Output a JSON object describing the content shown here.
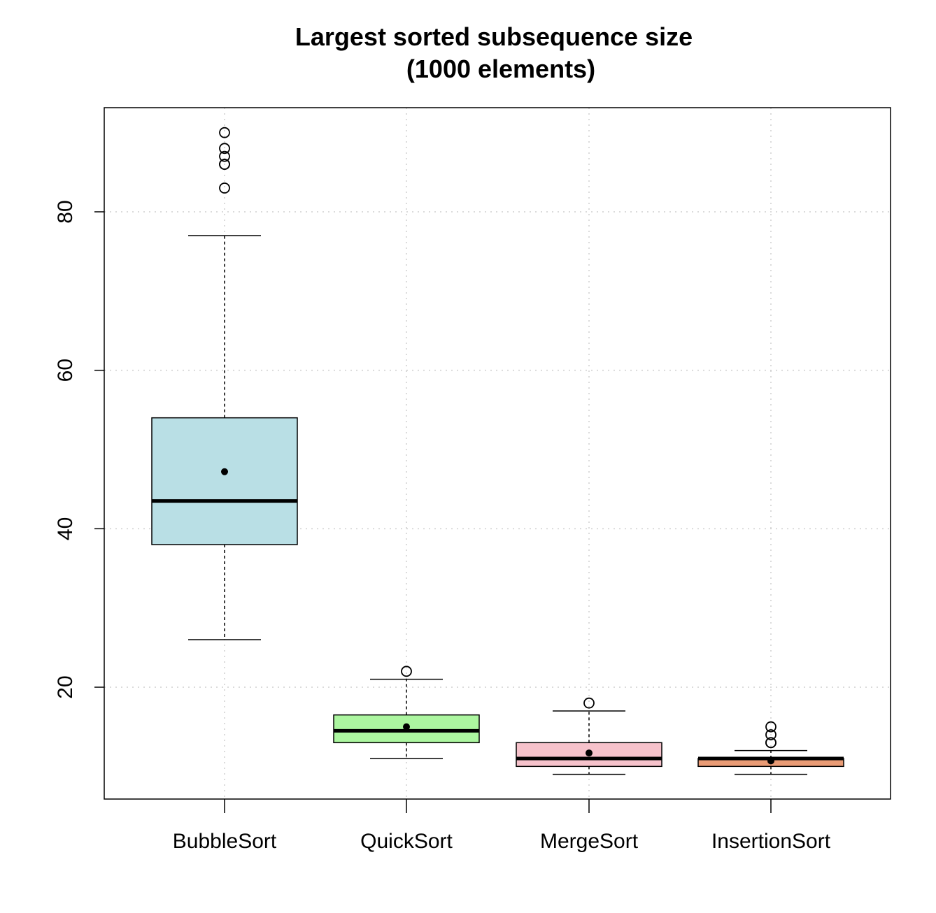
{
  "chart_data": {
    "type": "boxplot",
    "title": [
      "Largest sorted subsequence size",
      "(1000 elements)"
    ],
    "xlabel": "",
    "ylabel": "",
    "ylim": [
      6.5,
      93.5
    ],
    "yticks": [
      20,
      40,
      60,
      80
    ],
    "grid": true,
    "categories": [
      "BubbleSort",
      "QuickSort",
      "MergeSort",
      "InsertionSort"
    ],
    "boxes": [
      {
        "name": "BubbleSort",
        "whisker_low": 26,
        "q1": 38,
        "median": 43.5,
        "q3": 54,
        "whisker_high": 77,
        "mean": 47.2,
        "outliers": [
          83,
          86,
          86,
          87,
          88,
          90
        ],
        "color": "#b9dfe5"
      },
      {
        "name": "QuickSort",
        "whisker_low": 11,
        "q1": 13,
        "median": 14.5,
        "q3": 16.5,
        "whisker_high": 21,
        "mean": 15,
        "outliers": [
          22
        ],
        "color": "#acf6a0"
      },
      {
        "name": "MergeSort",
        "whisker_low": 9,
        "q1": 10,
        "median": 11,
        "q3": 13,
        "whisker_high": 17,
        "mean": 11.7,
        "outliers": [
          18
        ],
        "color": "#f6c2cb"
      },
      {
        "name": "InsertionSort",
        "whisker_low": 9,
        "q1": 10,
        "median": 11,
        "q3": 11,
        "whisker_high": 12,
        "mean": 10.7,
        "outliers": [
          13,
          13,
          14,
          15
        ],
        "color": "#e99b75"
      }
    ]
  }
}
